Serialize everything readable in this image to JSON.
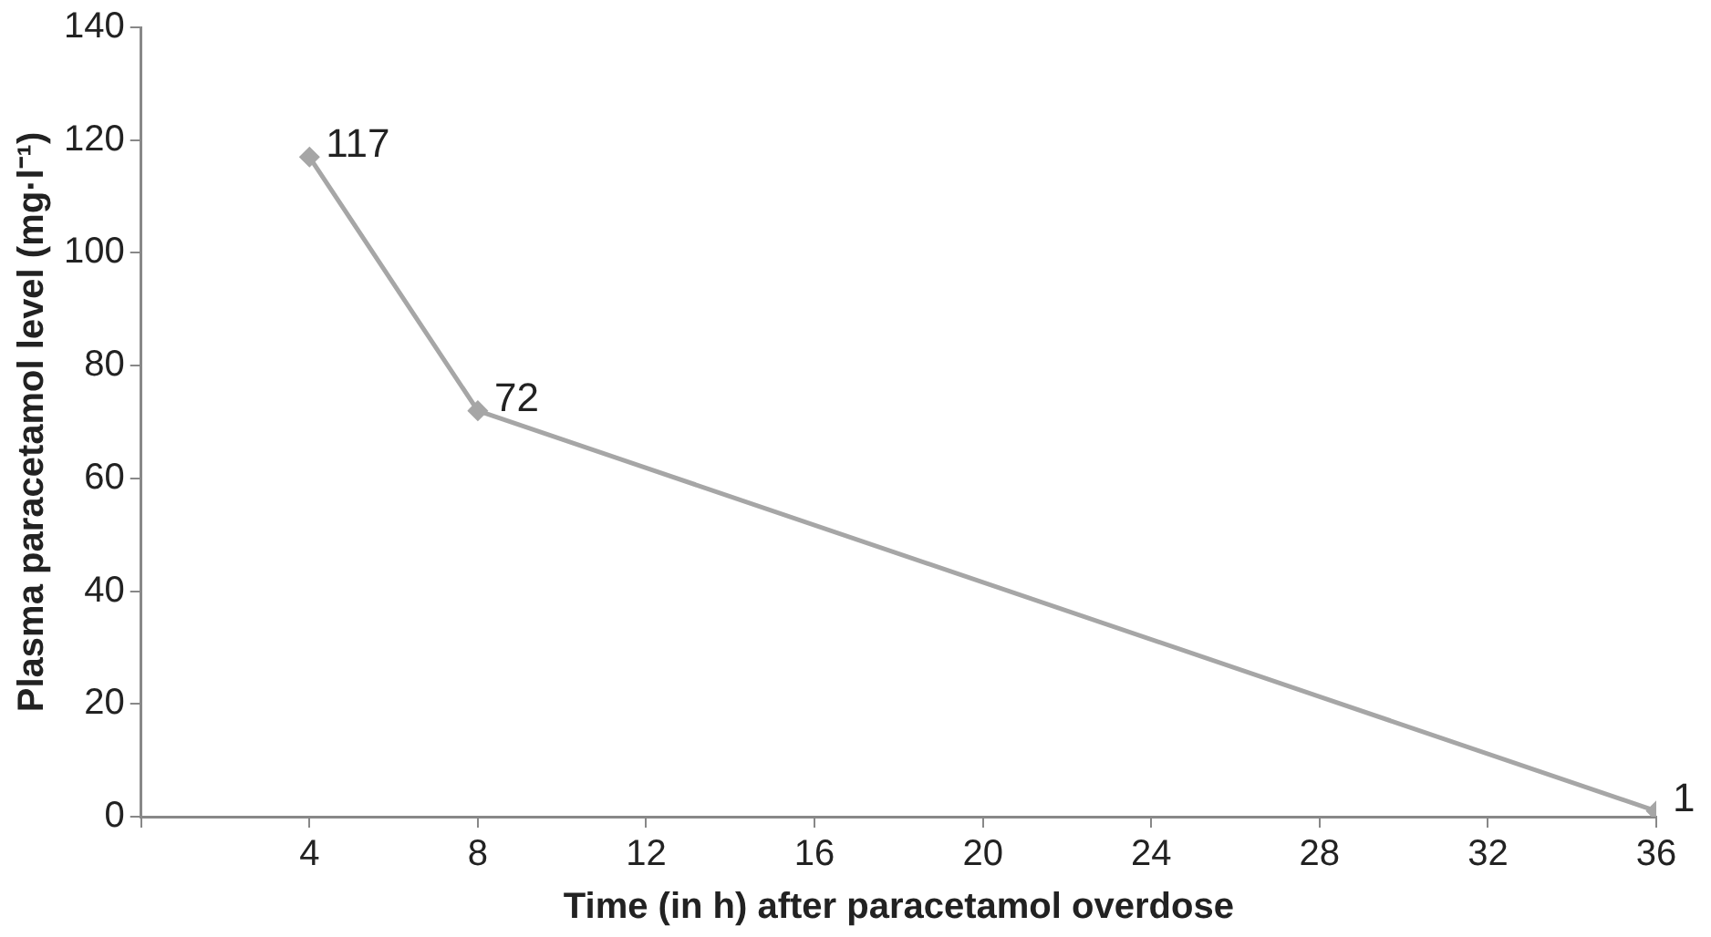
{
  "chart_data": {
    "type": "line",
    "xlabel": "Time (in h) after paracetamol overdose",
    "ylabel": "Plasma paracetamol level (mg·l⁻¹)",
    "x": [
      4,
      8,
      36
    ],
    "series": [
      {
        "color": "#a6a6a6",
        "values": [
          117,
          72,
          1
        ]
      }
    ],
    "xlim": [
      0,
      36
    ],
    "xticks": [
      {
        "value": 0,
        "label": null
      },
      4,
      8,
      12,
      16,
      20,
      24,
      28,
      32,
      36
    ],
    "ylim": [
      0,
      140
    ],
    "yticks": [
      0,
      20,
      40,
      60,
      80,
      100,
      120,
      140
    ],
    "grid": false,
    "legend": false,
    "marker": "diamond",
    "line_style": "solid",
    "data_labels": true
  }
}
